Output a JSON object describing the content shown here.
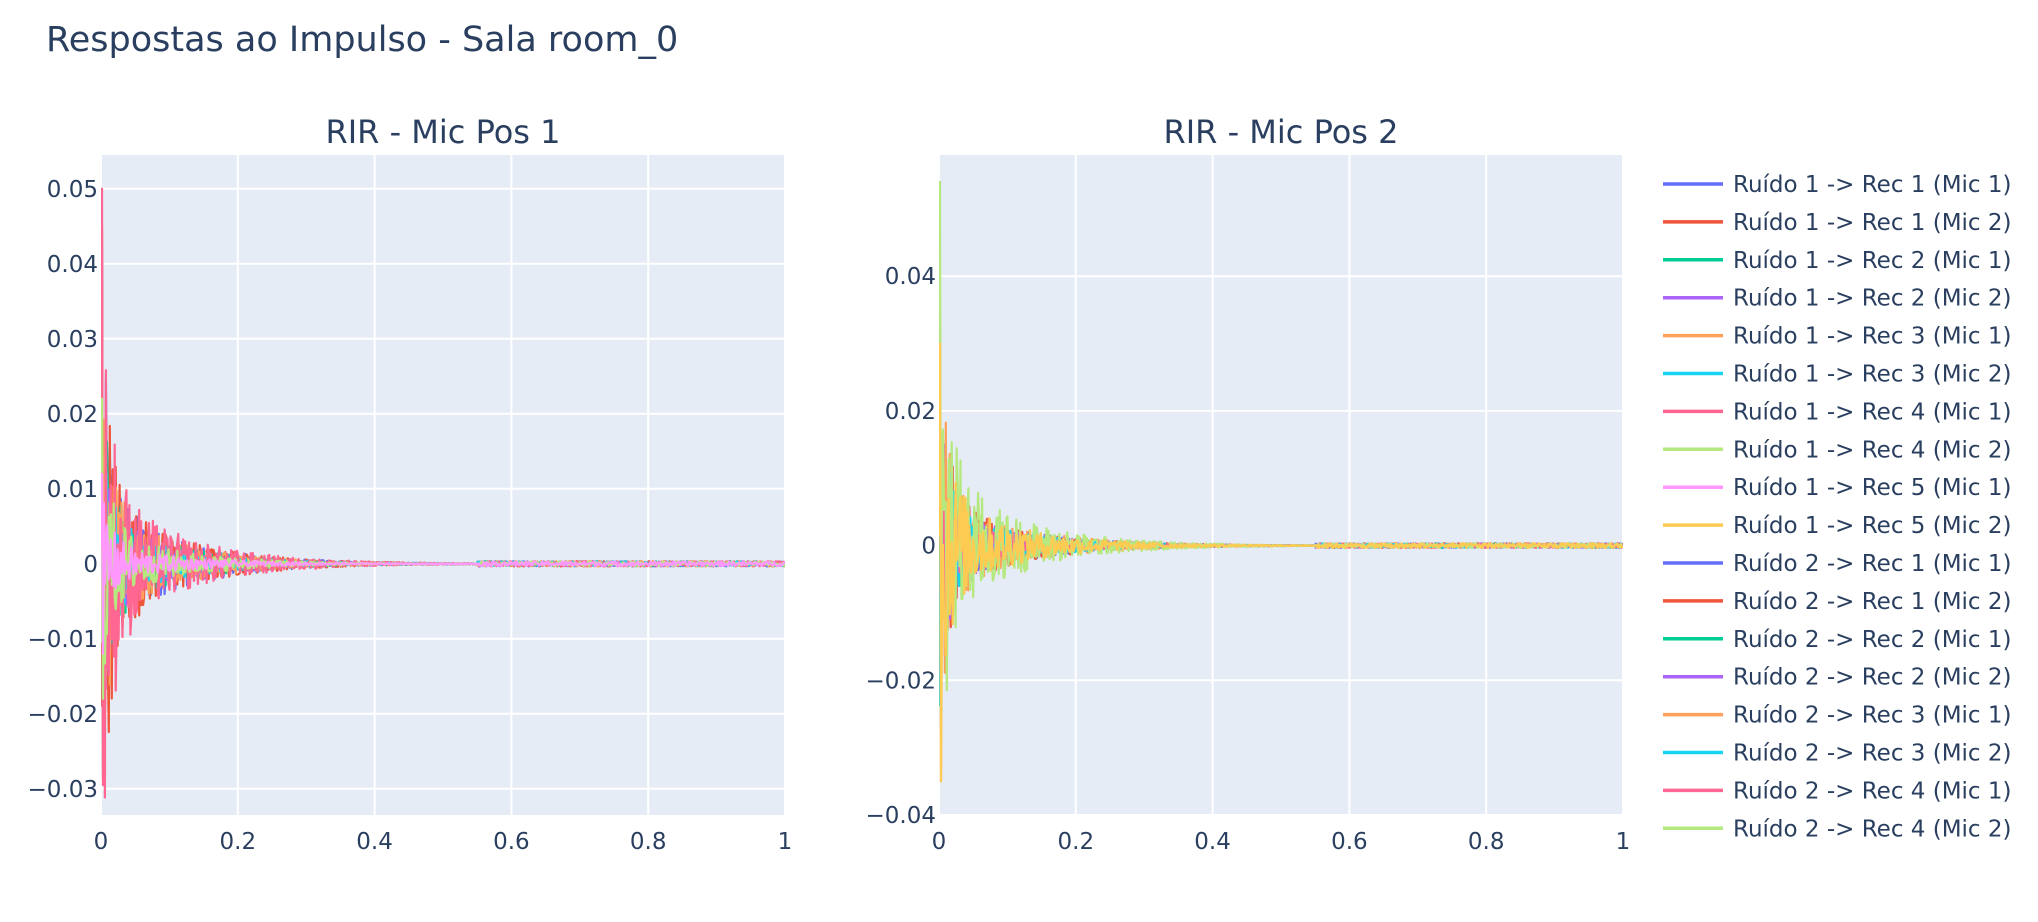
{
  "title": "Respostas ao Impulso - Sala room_0",
  "colors": {
    "plot_bg": "#e5ecf6",
    "grid": "#ffffff",
    "text": "#2a3f5f",
    "palette": [
      "#636efa",
      "#ef553b",
      "#00cc96",
      "#ab63fa",
      "#ffa15a",
      "#19d3f3",
      "#ff6692",
      "#b6e880",
      "#ff97ff",
      "#fecb52"
    ]
  },
  "legend": {
    "placement": "right",
    "entries": [
      "Ruído 1 -> Rec 1 (Mic 1)",
      "Ruído 1 -> Rec 1 (Mic 2)",
      "Ruído 1 -> Rec 2 (Mic 1)",
      "Ruído 1 -> Rec 2 (Mic 2)",
      "Ruído 1 -> Rec 3 (Mic 1)",
      "Ruído 1 -> Rec 3 (Mic 2)",
      "Ruído 1 -> Rec 4 (Mic 1)",
      "Ruído 1 -> Rec 4 (Mic 2)",
      "Ruído 1 -> Rec 5 (Mic 1)",
      "Ruído 1 -> Rec 5 (Mic 2)",
      "Ruído 2 -> Rec 1 (Mic 1)",
      "Ruído 2 -> Rec 1 (Mic 2)",
      "Ruído 2 -> Rec 2 (Mic 1)",
      "Ruído 2 -> Rec 2 (Mic 2)",
      "Ruído 2 -> Rec 3 (Mic 1)",
      "Ruído 2 -> Rec 3 (Mic 2)",
      "Ruído 2 -> Rec 4 (Mic 1)",
      "Ruído 2 -> Rec 4 (Mic 2)"
    ]
  },
  "chart_data": [
    {
      "type": "line",
      "title": "RIR - Mic Pos 1",
      "xlabel": "",
      "ylabel": "",
      "xlim": [
        0,
        1
      ],
      "ylim": [
        -0.0335,
        0.0545
      ],
      "xticks": [
        "0",
        "0.2",
        "0.4",
        "0.6",
        "0.8",
        "1"
      ],
      "xtick_values": [
        0,
        0.2,
        0.4,
        0.6,
        0.8,
        1
      ],
      "yticks": [
        "−0.03",
        "−0.02",
        "−0.01",
        "0",
        "0.01",
        "0.02",
        "0.03",
        "0.04",
        "0.05"
      ],
      "ytick_values": [
        -0.03,
        -0.02,
        -0.01,
        0,
        0.01,
        0.02,
        0.03,
        0.04,
        0.05
      ],
      "grid": true,
      "series_envelopes": [
        {
          "color": "#636efa",
          "peak_pos": 0.042,
          "peak_neg": -0.028,
          "decay_tail": 0.0012
        },
        {
          "color": "#ef553b",
          "peak_pos": 0.045,
          "peak_neg": -0.029,
          "decay_tail": 0.0012
        },
        {
          "color": "#00cc96",
          "peak_pos": 0.03,
          "peak_neg": -0.024,
          "decay_tail": 0.0011
        },
        {
          "color": "#ab63fa",
          "peak_pos": 0.028,
          "peak_neg": -0.022,
          "decay_tail": 0.001
        },
        {
          "color": "#ffa15a",
          "peak_pos": 0.035,
          "peak_neg": -0.025,
          "decay_tail": 0.0013
        },
        {
          "color": "#19d3f3",
          "peak_pos": 0.025,
          "peak_neg": -0.02,
          "decay_tail": 0.001
        },
        {
          "color": "#ff6692",
          "peak_pos": 0.05,
          "peak_neg": -0.0295,
          "decay_tail": 0.0012
        },
        {
          "color": "#b6e880",
          "peak_pos": 0.022,
          "peak_neg": -0.018,
          "decay_tail": 0.001
        },
        {
          "color": "#ff97ff",
          "peak_pos": 0.012,
          "peak_neg": -0.012,
          "decay_tail": 0.001
        }
      ]
    },
    {
      "type": "line",
      "title": "RIR - Mic Pos 2",
      "xlabel": "",
      "ylabel": "",
      "xlim": [
        0,
        1
      ],
      "ylim": [
        -0.04,
        0.058
      ],
      "xticks": [
        "0",
        "0.2",
        "0.4",
        "0.6",
        "0.8",
        "1"
      ],
      "xtick_values": [
        0,
        0.2,
        0.4,
        0.6,
        0.8,
        1
      ],
      "yticks": [
        "−0.04",
        "−0.02",
        "0",
        "0.02",
        "0.04"
      ],
      "ytick_values": [
        -0.04,
        -0.02,
        0,
        0.02,
        0.04
      ],
      "grid": true,
      "series_envelopes": [
        {
          "color": "#636efa",
          "peak_pos": 0.03,
          "peak_neg": -0.028,
          "decay_tail": 0.0012
        },
        {
          "color": "#ef553b",
          "peak_pos": 0.034,
          "peak_neg": -0.025,
          "decay_tail": 0.0012
        },
        {
          "color": "#00cc96",
          "peak_pos": 0.025,
          "peak_neg": -0.022,
          "decay_tail": 0.0011
        },
        {
          "color": "#ab63fa",
          "peak_pos": 0.026,
          "peak_neg": -0.02,
          "decay_tail": 0.0011
        },
        {
          "color": "#ffa15a",
          "peak_pos": 0.028,
          "peak_neg": -0.035,
          "decay_tail": 0.0012
        },
        {
          "color": "#19d3f3",
          "peak_pos": 0.022,
          "peak_neg": -0.026,
          "decay_tail": 0.001
        },
        {
          "color": "#ff6692",
          "peak_pos": 0.02,
          "peak_neg": -0.02,
          "decay_tail": 0.001
        },
        {
          "color": "#b6e880",
          "peak_pos": 0.054,
          "peak_neg": -0.024,
          "decay_tail": 0.0011
        },
        {
          "color": "#fecb52",
          "peak_pos": 0.03,
          "peak_neg": -0.035,
          "decay_tail": 0.0012
        }
      ]
    }
  ]
}
